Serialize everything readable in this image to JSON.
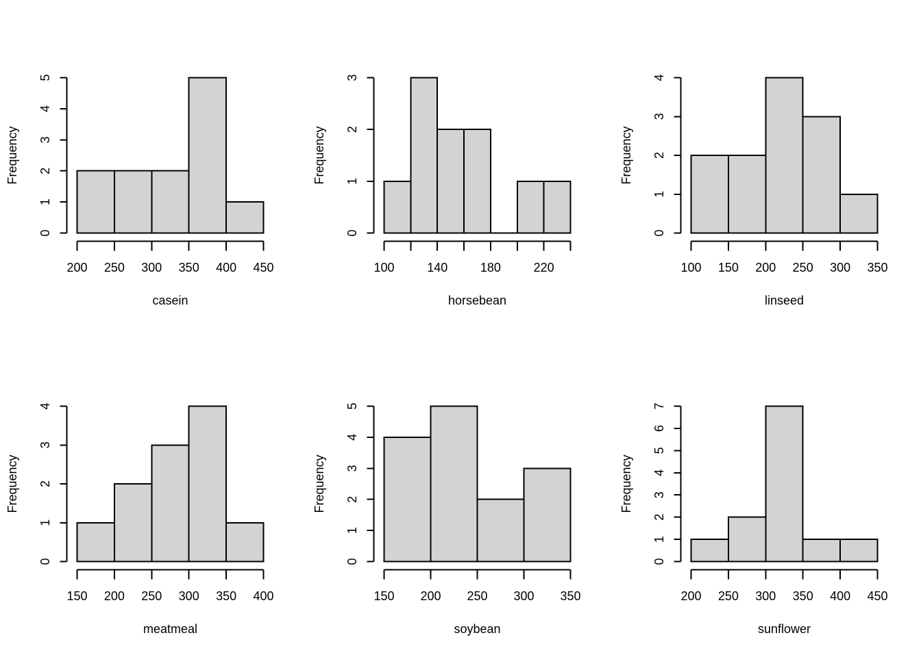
{
  "figure": {
    "background_color": "#ffffff",
    "bar_fill_color": "#d3d3d3",
    "line_color": "#000000",
    "text_color": "#000000",
    "layout": "2x3 grid of histograms"
  },
  "chart_data": [
    {
      "type": "bar",
      "subtype": "histogram",
      "title": "",
      "xlabel": "casein",
      "ylabel": "Frequency",
      "bin_start": 200,
      "bin_width": 50,
      "counts": [
        2,
        2,
        2,
        5,
        1
      ],
      "xlim": [
        200,
        450
      ],
      "ylim": [
        0,
        5
      ],
      "x_ticks": [
        200,
        250,
        300,
        350,
        400,
        450
      ],
      "x_tick_labels": [
        "200",
        "250",
        "300",
        "350",
        "400",
        "450"
      ],
      "y_ticks": [
        0,
        1,
        2,
        3,
        4,
        5
      ],
      "grid": false,
      "legend": null
    },
    {
      "type": "bar",
      "subtype": "histogram",
      "title": "",
      "xlabel": "horsebean",
      "ylabel": "Frequency",
      "bin_start": 100,
      "bin_width": 20,
      "counts": [
        1,
        3,
        2,
        2,
        0,
        1,
        1
      ],
      "xlim": [
        100,
        240
      ],
      "ylim": [
        0,
        3
      ],
      "x_ticks": [
        100,
        120,
        140,
        160,
        180,
        200,
        220,
        240
      ],
      "x_tick_labels": [
        "100",
        "",
        "140",
        "",
        "180",
        "",
        "220",
        ""
      ],
      "y_ticks": [
        0,
        1,
        2,
        3
      ],
      "grid": false,
      "legend": null
    },
    {
      "type": "bar",
      "subtype": "histogram",
      "title": "",
      "xlabel": "linseed",
      "ylabel": "Frequency",
      "bin_start": 100,
      "bin_width": 50,
      "counts": [
        2,
        2,
        4,
        3,
        1
      ],
      "xlim": [
        100,
        350
      ],
      "ylim": [
        0,
        4
      ],
      "x_ticks": [
        100,
        150,
        200,
        250,
        300,
        350
      ],
      "x_tick_labels": [
        "100",
        "150",
        "200",
        "250",
        "300",
        "350"
      ],
      "y_ticks": [
        0,
        1,
        2,
        3,
        4
      ],
      "grid": false,
      "legend": null
    },
    {
      "type": "bar",
      "subtype": "histogram",
      "title": "",
      "xlabel": "meatmeal",
      "ylabel": "Frequency",
      "bin_start": 150,
      "bin_width": 50,
      "counts": [
        1,
        2,
        3,
        4,
        1
      ],
      "xlim": [
        150,
        400
      ],
      "ylim": [
        0,
        4
      ],
      "x_ticks": [
        150,
        200,
        250,
        300,
        350,
        400
      ],
      "x_tick_labels": [
        "150",
        "200",
        "250",
        "300",
        "350",
        "400"
      ],
      "y_ticks": [
        0,
        1,
        2,
        3,
        4
      ],
      "grid": false,
      "legend": null
    },
    {
      "type": "bar",
      "subtype": "histogram",
      "title": "",
      "xlabel": "soybean",
      "ylabel": "Frequency",
      "bin_start": 150,
      "bin_width": 50,
      "counts": [
        4,
        5,
        2,
        3
      ],
      "xlim": [
        150,
        350
      ],
      "ylim": [
        0,
        5
      ],
      "x_ticks": [
        150,
        200,
        250,
        300,
        350
      ],
      "x_tick_labels": [
        "150",
        "200",
        "250",
        "300",
        "350"
      ],
      "y_ticks": [
        0,
        1,
        2,
        3,
        4,
        5
      ],
      "grid": false,
      "legend": null
    },
    {
      "type": "bar",
      "subtype": "histogram",
      "title": "",
      "xlabel": "sunflower",
      "ylabel": "Frequency",
      "bin_start": 200,
      "bin_width": 50,
      "counts": [
        1,
        2,
        7,
        1,
        1
      ],
      "xlim": [
        200,
        450
      ],
      "ylim": [
        0,
        7
      ],
      "x_ticks": [
        200,
        250,
        300,
        350,
        400,
        450
      ],
      "x_tick_labels": [
        "200",
        "250",
        "300",
        "350",
        "400",
        "450"
      ],
      "y_ticks": [
        0,
        1,
        2,
        3,
        4,
        5,
        6,
        7
      ],
      "grid": false,
      "legend": null
    }
  ]
}
